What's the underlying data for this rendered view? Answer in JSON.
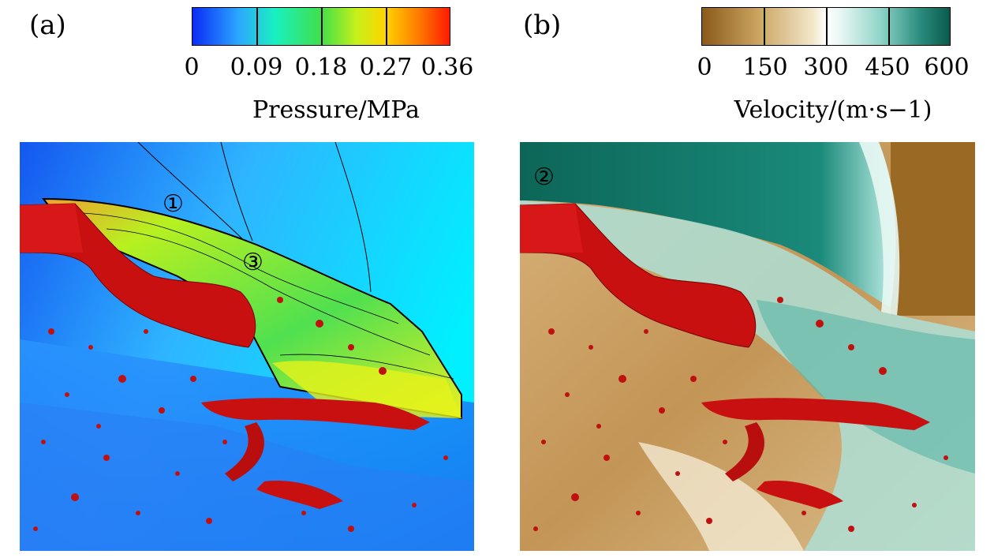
{
  "panel_a": {
    "label": "(a)",
    "colorbar": {
      "title": "Pressure/MPa",
      "ticks": [
        "0",
        "0.09",
        "0.18",
        "0.27",
        "0.36"
      ],
      "colors": [
        "#0a2cf5",
        "#2ba8ff",
        "#19f0c0",
        "#3fe04a",
        "#c8f01a",
        "#ffd400",
        "#ff7a00",
        "#ff1a00"
      ]
    },
    "markers": [
      "①",
      "③"
    ]
  },
  "panel_b": {
    "label": "(b)",
    "colorbar": {
      "title": "Velocity/(m·s−1)",
      "ticks": [
        "0",
        "150",
        "300",
        "450",
        "600"
      ],
      "colors": [
        "#8a5a1a",
        "#c9a25e",
        "#f3e8cc",
        "#e8f6f4",
        "#8fd4c8",
        "#2a8c7e",
        "#0a5a4c"
      ]
    },
    "markers": [
      "②"
    ]
  }
}
